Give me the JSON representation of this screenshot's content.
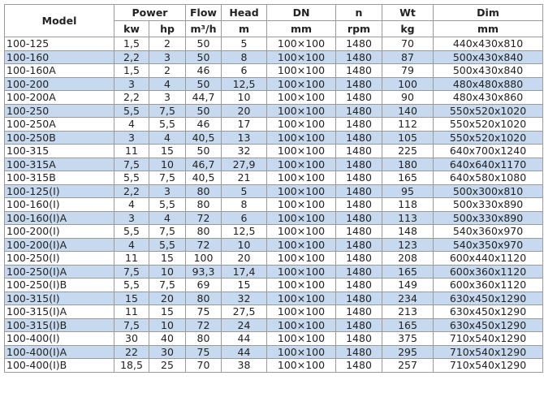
{
  "header": {
    "model": "Model",
    "groups": [
      "Power",
      "Flow",
      "Head",
      "DN",
      "n",
      "Wt",
      "Dim"
    ],
    "units": [
      "kw",
      "hp",
      "m³/h",
      "m",
      "mm",
      "rpm",
      "kg",
      "mm"
    ]
  },
  "row_highlight_color": "#c6d9ef",
  "rows": [
    [
      "100-125",
      "1,5",
      "2",
      "50",
      "5",
      "100×100",
      "1480",
      "70",
      "440x430x810"
    ],
    [
      "100-160",
      "2,2",
      "3",
      "50",
      "8",
      "100×100",
      "1480",
      "87",
      "500x430x840"
    ],
    [
      "100-160A",
      "1,5",
      "2",
      "46",
      "6",
      "100×100",
      "1480",
      "79",
      "500x430x840"
    ],
    [
      "100-200",
      "3",
      "4",
      "50",
      "12,5",
      "100×100",
      "1480",
      "100",
      "480x480x880"
    ],
    [
      "100-200A",
      "2,2",
      "3",
      "44,7",
      "10",
      "100×100",
      "1480",
      "90",
      "480x430x860"
    ],
    [
      "100-250",
      "5,5",
      "7,5",
      "50",
      "20",
      "100×100",
      "1480",
      "140",
      "550x520x1020"
    ],
    [
      "100-250A",
      "4",
      "5,5",
      "46",
      "17",
      "100×100",
      "1480",
      "112",
      "550x520x1020"
    ],
    [
      "100-250B",
      "3",
      "4",
      "40,5",
      "13",
      "100×100",
      "1480",
      "105",
      "550x520x1020"
    ],
    [
      "100-315",
      "11",
      "15",
      "50",
      "32",
      "100×100",
      "1480",
      "225",
      "640x700x1240"
    ],
    [
      "100-315A",
      "7,5",
      "10",
      "46,7",
      "27,9",
      "100×100",
      "1480",
      "180",
      "640x640x1170"
    ],
    [
      "100-315B",
      "5,5",
      "7,5",
      "40,5",
      "21",
      "100×100",
      "1480",
      "165",
      "640x580x1080"
    ],
    [
      "100-125(I)",
      "2,2",
      "3",
      "80",
      "5",
      "100×100",
      "1480",
      "95",
      "500x300x810"
    ],
    [
      "100-160(I)",
      "4",
      "5,5",
      "80",
      "8",
      "100×100",
      "1480",
      "118",
      "500x330x890"
    ],
    [
      "100-160(I)A",
      "3",
      "4",
      "72",
      "6",
      "100×100",
      "1480",
      "113",
      "500x330x890"
    ],
    [
      "100-200(I)",
      "5,5",
      "7,5",
      "80",
      "12,5",
      "100×100",
      "1480",
      "148",
      "540x360x970"
    ],
    [
      "100-200(I)A",
      "4",
      "5,5",
      "72",
      "10",
      "100×100",
      "1480",
      "123",
      "540x350x970"
    ],
    [
      "100-250(I)",
      "11",
      "15",
      "100",
      "20",
      "100×100",
      "1480",
      "208",
      "600x440x1120"
    ],
    [
      "100-250(I)A",
      "7,5",
      "10",
      "93,3",
      "17,4",
      "100×100",
      "1480",
      "165",
      "600x360x1120"
    ],
    [
      "100-250(I)B",
      "5,5",
      "7,5",
      "69",
      "15",
      "100×100",
      "1480",
      "149",
      "600x360x1120"
    ],
    [
      "100-315(I)",
      "15",
      "20",
      "80",
      "32",
      "100×100",
      "1480",
      "234",
      "630x450x1290"
    ],
    [
      "100-315(I)A",
      "11",
      "15",
      "75",
      "27,5",
      "100×100",
      "1480",
      "213",
      "630x450x1290"
    ],
    [
      "100-315(I)B",
      "7,5",
      "10",
      "72",
      "24",
      "100×100",
      "1480",
      "165",
      "630x450x1290"
    ],
    [
      "100-400(I)",
      "30",
      "40",
      "80",
      "44",
      "100×100",
      "1480",
      "375",
      "710x540x1290"
    ],
    [
      "100-400(I)A",
      "22",
      "30",
      "75",
      "44",
      "100×100",
      "1480",
      "295",
      "710x540x1290"
    ],
    [
      "100-400(I)B",
      "18,5",
      "25",
      "70",
      "38",
      "100×100",
      "1480",
      "257",
      "710x540x1290"
    ]
  ]
}
